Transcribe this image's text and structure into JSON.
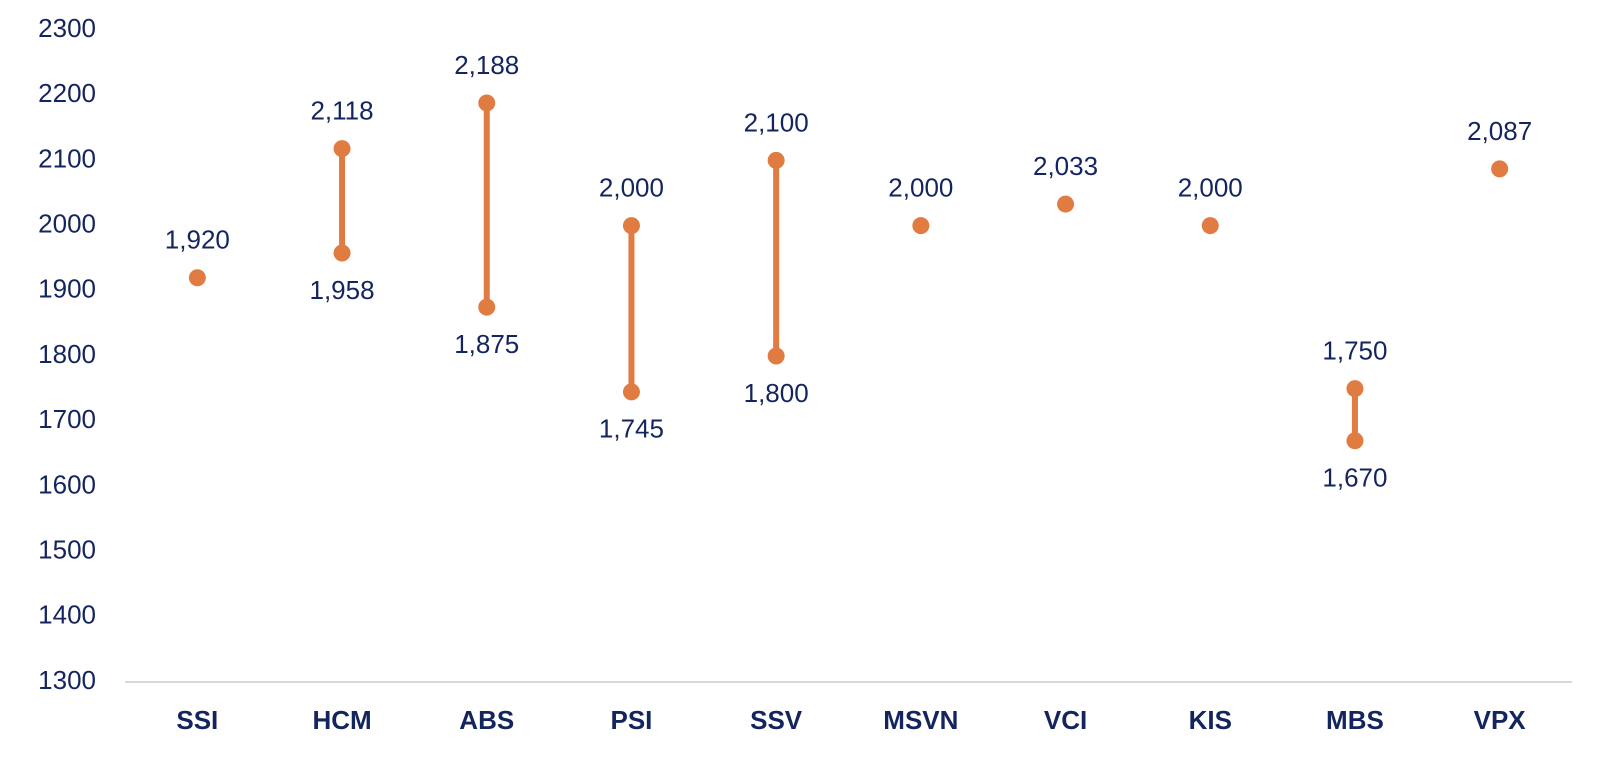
{
  "chart_data": {
    "type": "dumbbell",
    "categories": [
      "SSI",
      "HCM",
      "ABS",
      "PSI",
      "SSV",
      "MSVN",
      "VCI",
      "KIS",
      "MBS",
      "VPX"
    ],
    "series": [
      {
        "color": "#e07b42",
        "values": [
          1920,
          2118,
          2188,
          2000,
          2100,
          2000,
          2033,
          2000,
          1750,
          2087
        ],
        "value_labels": [
          "1,920",
          "2,118",
          "2,188",
          "2,000",
          "2,100",
          "2,000",
          "2,033",
          "2,000",
          "1,750",
          "2,087"
        ]
      },
      {
        "color": "#e07b42",
        "values": [
          null,
          1958,
          1875,
          1745,
          1800,
          null,
          null,
          null,
          1670,
          null
        ],
        "value_labels": [
          null,
          "1,958",
          "1,875",
          "1,745",
          "1,800",
          null,
          null,
          null,
          "1,670",
          null
        ]
      }
    ],
    "ylim": [
      1300,
      2300
    ],
    "yticks": [
      1300,
      1400,
      1500,
      1600,
      1700,
      1800,
      1900,
      2000,
      2100,
      2200,
      2300
    ],
    "grid": false,
    "axis_color": "#d9d9d9"
  }
}
